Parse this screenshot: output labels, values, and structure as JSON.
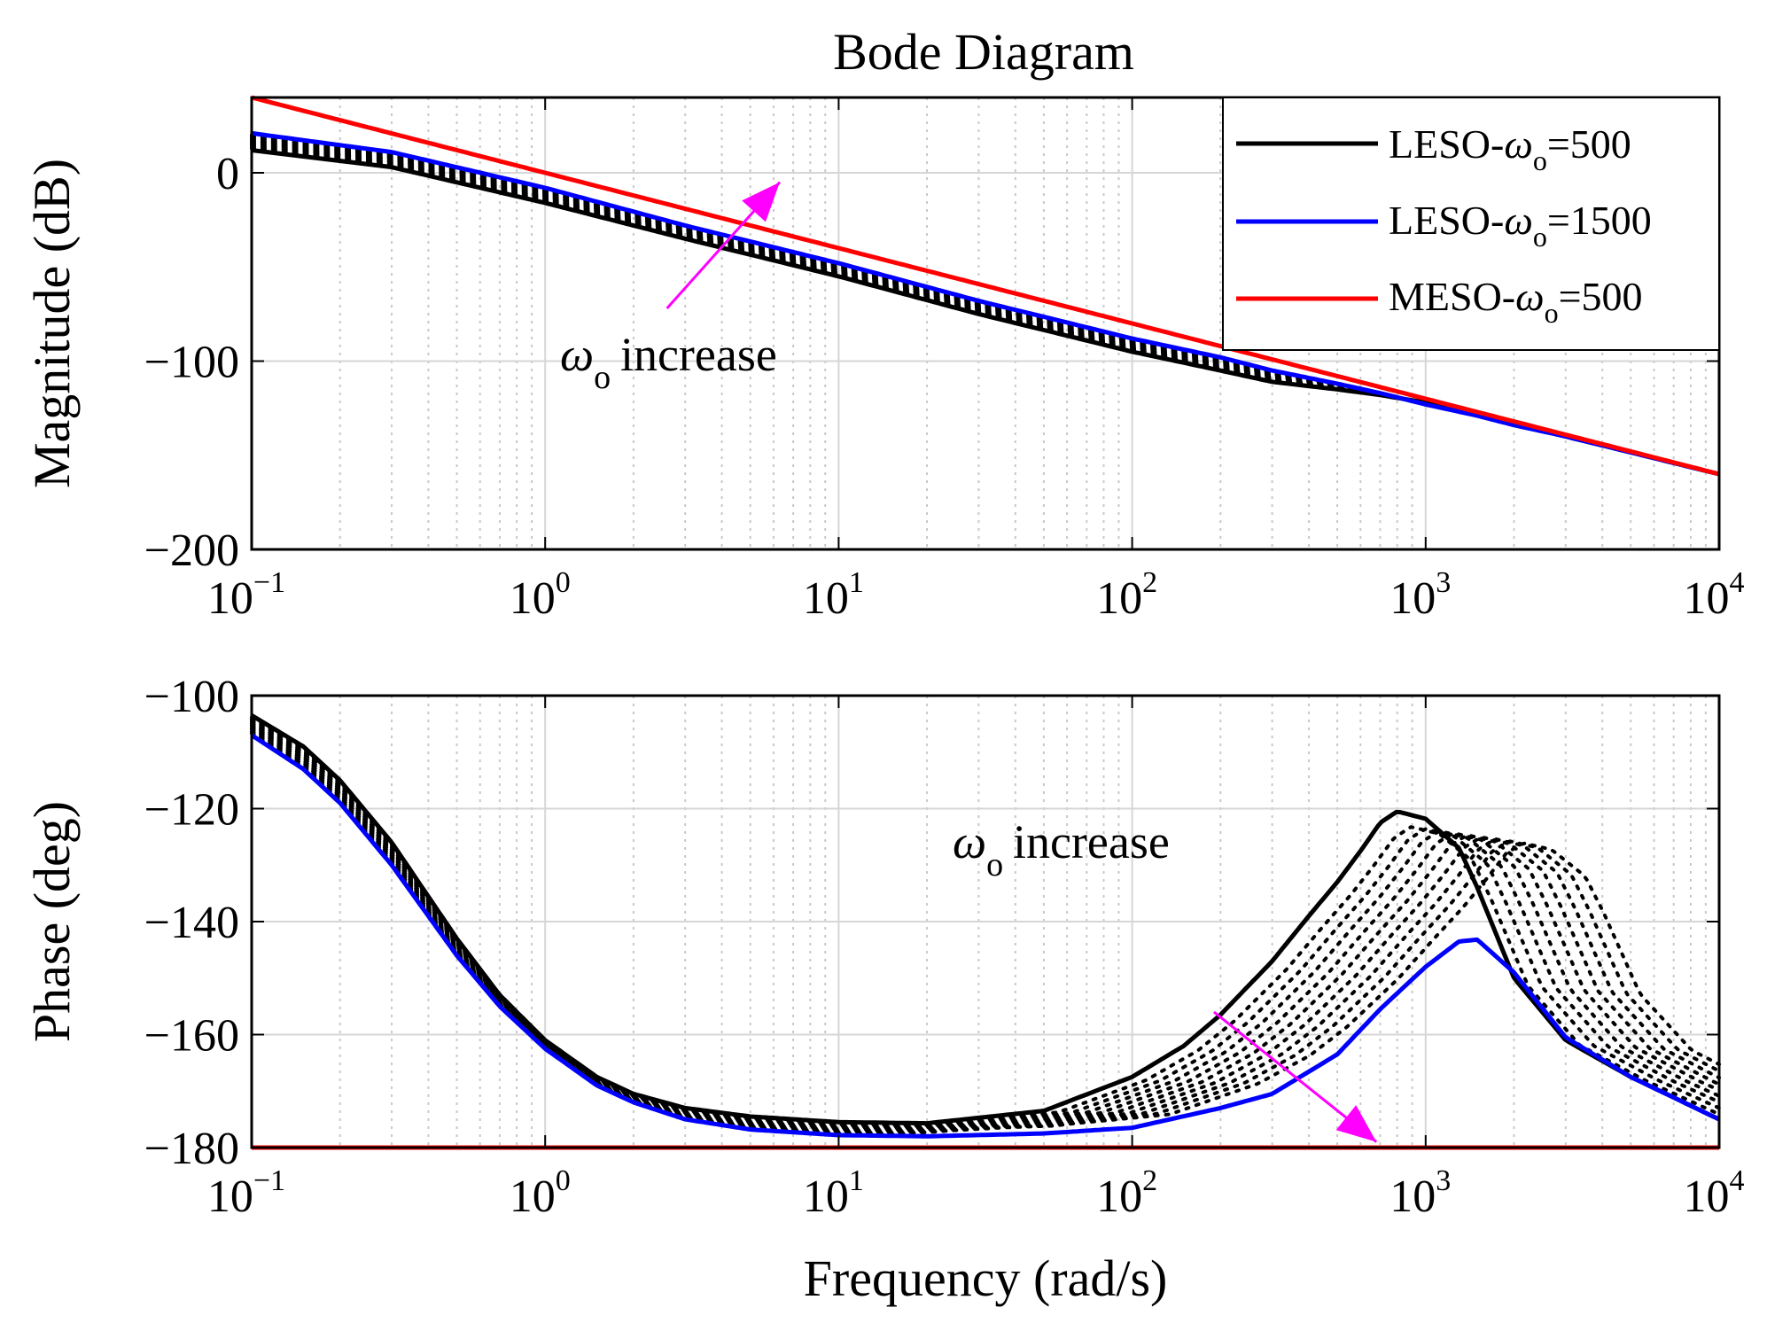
{
  "chart_data": {
    "type": "line",
    "title": "Bode Diagram",
    "xlabel": "Frequency (rad/s)",
    "x_scale": "log",
    "xlim": [
      0.1,
      10000
    ],
    "x_ticks": [
      {
        "base": "10",
        "exp": "−1"
      },
      {
        "base": "10",
        "exp": "0"
      },
      {
        "base": "10",
        "exp": "1"
      },
      {
        "base": "10",
        "exp": "2"
      },
      {
        "base": "10",
        "exp": "3"
      },
      {
        "base": "10",
        "exp": "4"
      }
    ],
    "legend": {
      "placement": "top-right",
      "entries": [
        {
          "prefix": "LESO-",
          "omega": "ω",
          "sub": "o",
          "suffix": "=500",
          "color": "#000000"
        },
        {
          "prefix": "LESO-",
          "omega": "ω",
          "sub": "o",
          "suffix": "=1500",
          "color": "#0000ff"
        },
        {
          "prefix": "MESO-",
          "omega": "ω",
          "sub": "o",
          "suffix": "=500",
          "color": "#ff0000"
        }
      ]
    },
    "magnitude_plot": {
      "ylabel": "Magnitude (dB)",
      "ylim": [
        -200,
        40
      ],
      "y_ticks": [
        {
          "value": 0,
          "label": "0"
        },
        {
          "value": -100,
          "label": "−100"
        },
        {
          "value": -200,
          "label": "−200"
        }
      ],
      "series": [
        {
          "name": "LESO-ωo=500",
          "color": "#000000",
          "x": [
            0.1,
            0.3,
            1,
            3,
            10,
            30,
            100,
            200,
            300,
            500,
            700,
            1000,
            1500,
            2000,
            3000,
            10000
          ],
          "y": [
            12,
            3,
            -16,
            -35,
            -55,
            -75,
            -95,
            -105,
            -111,
            -115,
            -118,
            -122,
            -128,
            -133,
            -140,
            -160
          ]
        },
        {
          "name": "LESO-ωo=1500",
          "color": "#0000ff",
          "x": [
            0.1,
            0.3,
            1,
            3,
            10,
            30,
            100,
            200,
            300,
            500,
            700,
            1000,
            1500,
            2000,
            3000,
            10000
          ],
          "y": [
            21,
            11,
            -8,
            -28,
            -48,
            -68,
            -88,
            -98,
            -105,
            -112,
            -117,
            -123,
            -129,
            -134,
            -140,
            -160
          ]
        },
        {
          "name": "MESO-ωo=500",
          "color": "#ff0000",
          "x": [
            0.1,
            10000
          ],
          "y": [
            40,
            -160
          ]
        }
      ],
      "annotation": {
        "omega": "ω",
        "sub": "o",
        "text": "increase",
        "arrow_from": [
          2.6,
          -72
        ],
        "arrow_to": [
          6.3,
          -5
        ],
        "color": "#ff00ff"
      }
    },
    "phase_plot": {
      "ylabel": "Phase (deg)",
      "ylim": [
        -180,
        -100
      ],
      "y_ticks": [
        {
          "value": -100,
          "label": "−100"
        },
        {
          "value": -120,
          "label": "−120"
        },
        {
          "value": -140,
          "label": "−140"
        },
        {
          "value": -160,
          "label": "−160"
        },
        {
          "value": -180,
          "label": "−180"
        }
      ],
      "series": [
        {
          "name": "LESO-ωo=500",
          "color": "#000000",
          "x": [
            0.1,
            0.15,
            0.2,
            0.3,
            0.5,
            0.7,
            1,
            1.5,
            2,
            3,
            5,
            10,
            20,
            50,
            100,
            150,
            200,
            300,
            400,
            500,
            600,
            700,
            800,
            1000,
            1300,
            1500,
            2000,
            3000,
            5000,
            10000
          ],
          "y": [
            -103.5,
            -109,
            -115,
            -126,
            -143,
            -153,
            -161,
            -167.5,
            -170.5,
            -173,
            -174.5,
            -175.5,
            -175.7,
            -173.5,
            -167.5,
            -162,
            -156.5,
            -147,
            -139,
            -133,
            -127.5,
            -122.5,
            -120.5,
            -121.8,
            -127,
            -134,
            -150,
            -161,
            -167.5,
            -175
          ]
        },
        {
          "name": "LESO-ωo=1500",
          "color": "#0000ff",
          "x": [
            0.1,
            0.15,
            0.2,
            0.3,
            0.5,
            0.7,
            1,
            1.5,
            2,
            3,
            5,
            10,
            20,
            50,
            100,
            200,
            300,
            500,
            700,
            1000,
            1300,
            1500,
            2000,
            3000,
            5000,
            10000
          ],
          "y": [
            -107,
            -113,
            -119,
            -130,
            -146,
            -155,
            -162.5,
            -169,
            -172,
            -175,
            -176.8,
            -177.8,
            -178,
            -177.5,
            -176.5,
            -173,
            -170.5,
            -163.5,
            -155.5,
            -148,
            -143.5,
            -143.2,
            -149,
            -160.5,
            -167.5,
            -175
          ]
        },
        {
          "name": "MESO-ωo=500",
          "color": "#ff0000",
          "x": [
            0.1,
            10000
          ],
          "y": [
            -180,
            -180
          ]
        }
      ],
      "annotation": {
        "omega": "ω",
        "sub": "o",
        "text": "increase",
        "arrow_from": [
          190,
          -156
        ],
        "arrow_to": [
          680,
          -179
        ],
        "color": "#ff00ff"
      }
    },
    "intermediate_curves_style": "dotted black"
  }
}
